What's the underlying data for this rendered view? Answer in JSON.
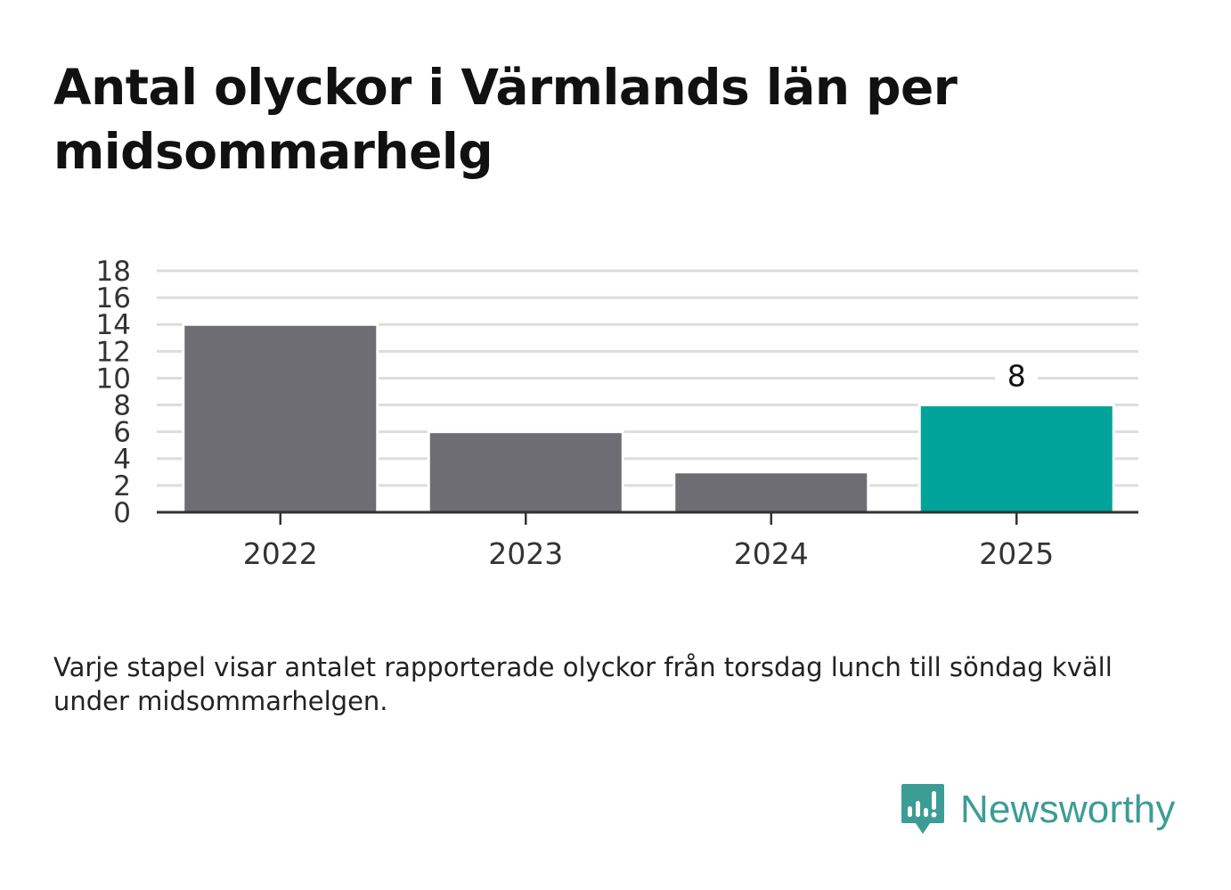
{
  "title": "Antal olyckor i Värmlands län per midsommarhelg",
  "footnote": "Varje stapel visar antalet rapporterade olyckor från torsdag lunch till söndag kväll under midsommarhelgen.",
  "brand": {
    "name": "Newsworthy",
    "icon": "newsworthy-logo-icon",
    "color": "#3c9c96"
  },
  "chart_data": {
    "type": "bar",
    "categories": [
      "2022",
      "2023",
      "2024",
      "2025"
    ],
    "values": [
      14,
      6,
      3,
      8
    ],
    "ylim": [
      0,
      18
    ],
    "yticks": [
      "0",
      "2",
      "4",
      "6",
      "8",
      "10",
      "12",
      "14",
      "16",
      "18"
    ],
    "grid": true,
    "highlight_index": 3,
    "data_labels": [
      null,
      null,
      null,
      "8"
    ],
    "colors": {
      "default": "#6e6d73",
      "highlight": "#00a39a",
      "grid": "#dddddd",
      "axis": "#333333"
    }
  }
}
